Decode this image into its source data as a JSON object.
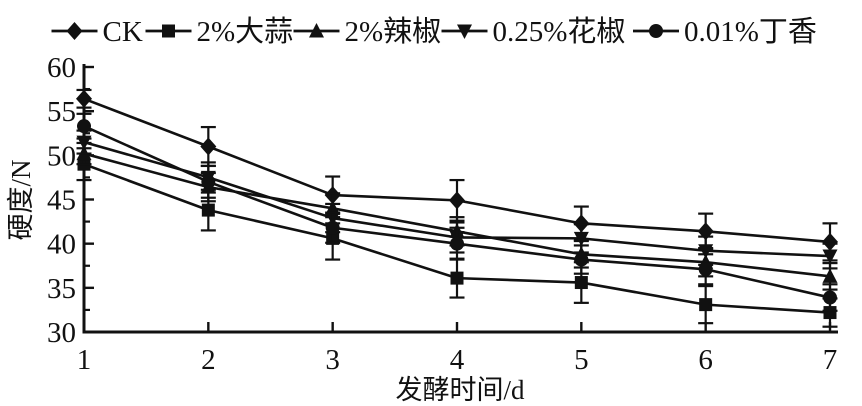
{
  "figure": {
    "background": "#ffffff",
    "ink_color": "#111111"
  },
  "chart_data": {
    "type": "line",
    "title": "",
    "xlabel": "发酵时间/d",
    "ylabel": "硬度/N",
    "x": [
      1,
      2,
      3,
      4,
      5,
      6,
      7
    ],
    "x_tick_labels": [
      "1",
      "2",
      "3",
      "4",
      "5",
      "6",
      "7"
    ],
    "xlim": [
      1,
      7
    ],
    "ylim": [
      30,
      60
    ],
    "y_major_ticks": [
      30,
      35,
      40,
      45,
      50,
      55,
      60
    ],
    "y_tick_labels": [
      "30",
      "35",
      "40",
      "45",
      "50",
      "55",
      "60"
    ],
    "y_minor_tick_step": 2.5,
    "grid": false,
    "legend_position": "top",
    "error_bars": true,
    "series": [
      {
        "key": "ck",
        "name": "CK",
        "marker": "diamond",
        "values": [
          56.4,
          51.0,
          45.5,
          44.9,
          42.3,
          41.4,
          40.2
        ],
        "errors": [
          1.0,
          2.2,
          2.1,
          2.3,
          1.9,
          2.0,
          2.1
        ]
      },
      {
        "key": "garlic",
        "name": "2%大蒜",
        "marker": "square",
        "values": [
          49.0,
          43.8,
          40.6,
          36.1,
          35.6,
          33.1,
          32.2
        ],
        "errors": [
          1.8,
          2.3,
          2.4,
          2.2,
          2.3,
          2.1,
          1.6
        ]
      },
      {
        "key": "chili",
        "name": "2%辣椒",
        "marker": "triangle-up",
        "values": [
          50.2,
          46.4,
          44.0,
          41.4,
          38.8,
          37.9,
          36.3
        ],
        "errors": [
          1.2,
          1.6,
          1.7,
          1.6,
          1.5,
          1.6,
          1.5
        ]
      },
      {
        "key": "sichuan-pepper",
        "name": "0.25%花椒",
        "marker": "triangle-down",
        "values": [
          51.5,
          47.5,
          42.9,
          40.7,
          40.6,
          39.2,
          38.6
        ],
        "errors": [
          1.3,
          1.7,
          1.6,
          1.7,
          1.6,
          1.6,
          1.4
        ]
      },
      {
        "key": "clove",
        "name": "0.01%丁香",
        "marker": "circle",
        "values": [
          53.3,
          47.0,
          41.8,
          40.0,
          38.2,
          37.1,
          33.9
        ],
        "errors": [
          1.4,
          1.8,
          1.7,
          1.8,
          1.6,
          1.7,
          1.5
        ]
      }
    ]
  }
}
